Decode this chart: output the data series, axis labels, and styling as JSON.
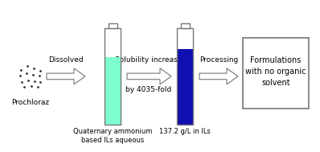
{
  "bg_color": "#ffffff",
  "prochloraz_label": "Prochloraz",
  "dissolved_label": "Dissolved",
  "solubility_label": "Solubility increase",
  "fold_label": "by 4035-fold",
  "processing_label": "Processing",
  "result_label": "Formulations\nwith no organic\nsolvent",
  "ql_label": "137.2 g/L in ILs",
  "qa_label": "Quaternary ammonium\nbased ILs aqueous",
  "tube1_fill_color": "#7fffd0",
  "tube2_fill_color": "#1010b0",
  "tube_border_color": "#777777",
  "arrow_face_color": "#ffffff",
  "arrow_edge_color": "#777777",
  "box_fill_color": "#ffffff",
  "box_edge_color": "#777777",
  "dot_color": "#333333",
  "text_color": "#000000",
  "font_size": 7.0,
  "label_font_size": 6.5
}
